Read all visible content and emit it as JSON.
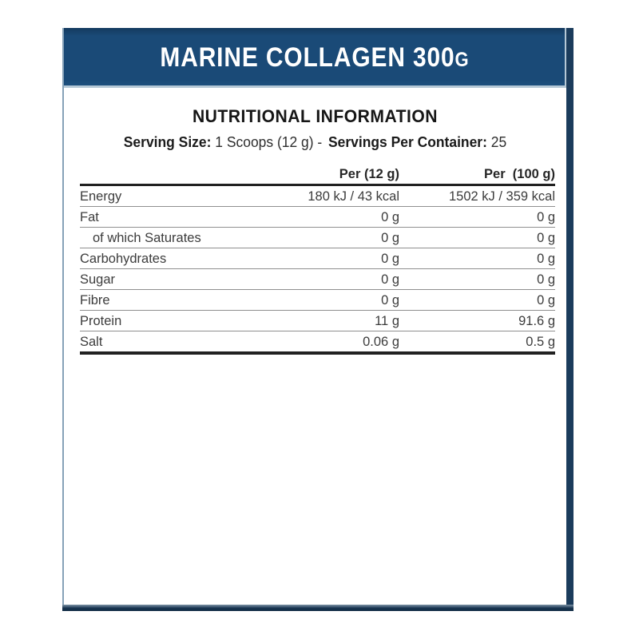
{
  "header": {
    "title_main": "MARINE COLLAGEN 300",
    "title_suffix": "G"
  },
  "section": {
    "title": "NUTRITIONAL INFORMATION",
    "serving": {
      "size_label": "Serving Size:",
      "size_value": "1 Scoops (12 g) -",
      "container_label": "Servings Per Container:",
      "container_value": "25"
    }
  },
  "table": {
    "columns": {
      "label": "",
      "per12": "Per (12 g)",
      "per100": "Per  (100 g)"
    },
    "rows": [
      {
        "label": "Energy",
        "per12": "180 kJ / 43 kcal",
        "per100": "1502 kJ / 359 kcal",
        "indent": false
      },
      {
        "label": "Fat",
        "per12": "0 g",
        "per100": "0 g",
        "indent": false
      },
      {
        "label": "of which Saturates",
        "per12": "0 g",
        "per100": "0 g",
        "indent": true
      },
      {
        "label": "Carbohydrates",
        "per12": "0 g",
        "per100": "0 g",
        "indent": false
      },
      {
        "label": "Sugar",
        "per12": "0 g",
        "per100": "0 g",
        "indent": false
      },
      {
        "label": "Fibre",
        "per12": "0 g",
        "per100": "0 g",
        "indent": false
      },
      {
        "label": "Protein",
        "per12": "11 g",
        "per100": "91.6 g",
        "indent": false
      },
      {
        "label": "Salt",
        "per12": "0.06 g",
        "per100": "0.5 g",
        "indent": false
      }
    ]
  },
  "colors": {
    "header_navy": "#1a4a77",
    "border_dark_navy": "#1b3c5c",
    "border_light_steel": "#86a2b8",
    "header_outline_light": "#b5c8d6",
    "table_text": "#3c3c3c",
    "thin_rule": "#8f8f8f",
    "thick_rule": "#212121",
    "header_text": "#ffffff"
  }
}
